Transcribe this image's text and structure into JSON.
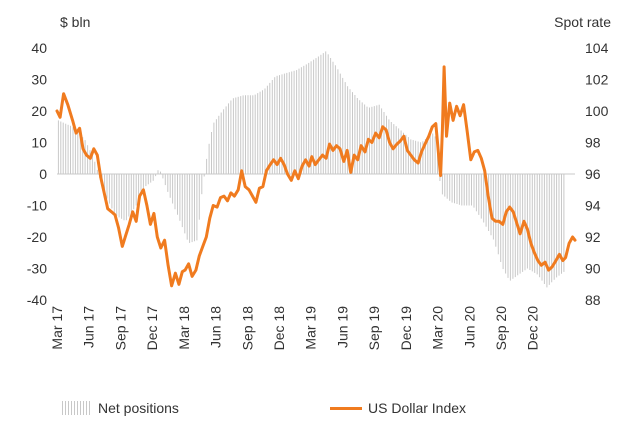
{
  "colors": {
    "bars": "#c8c8c8",
    "line": "#f07b1f",
    "zero_line": "#c8c8c8",
    "text": "#333333"
  },
  "chart_data": {
    "type": "bar+line",
    "left_axis": {
      "unit_label": "$ bln",
      "ylim": [
        -40,
        40
      ],
      "ticks": [
        "40",
        "30",
        "20",
        "10",
        "0",
        "-10",
        "-20",
        "-30",
        "-40"
      ]
    },
    "right_axis": {
      "unit_label": "Spot rate",
      "ylim": [
        88,
        104
      ],
      "ticks": [
        "104",
        "102",
        "100",
        "98",
        "96",
        "94",
        "92",
        "90",
        "88"
      ]
    },
    "x_axis": {
      "range": [
        "2017-03-01",
        "2021-04-01"
      ],
      "tick_labels": [
        "Mar 17",
        "Jun 17",
        "Sep 17",
        "Dec 17",
        "Mar 18",
        "Jun 18",
        "Sep 18",
        "Dec 18",
        "Mar 19",
        "Jun 19",
        "Sep 19",
        "Dec 19",
        "Mar 20",
        "Jun 20",
        "Sep 20",
        "Dec 20"
      ]
    },
    "legend": {
      "position": "bottom",
      "bars_label": "Net positions",
      "line_label": "US Dollar Index"
    },
    "grid": false,
    "series": [
      {
        "name": "Net positions",
        "axis": "left",
        "kind": "bar",
        "points": [
          [
            "2017-03-05",
            17
          ],
          [
            "2017-04-15",
            15
          ],
          [
            "2017-05-20",
            11
          ],
          [
            "2017-06-15",
            5
          ],
          [
            "2017-07-15",
            -6
          ],
          [
            "2017-08-15",
            -13
          ],
          [
            "2017-09-15",
            -15
          ],
          [
            "2017-10-15",
            -10
          ],
          [
            "2017-11-10",
            -4
          ],
          [
            "2017-12-05",
            -2
          ],
          [
            "2017-12-20",
            2
          ],
          [
            "2018-01-15",
            -6
          ],
          [
            "2018-02-15",
            -14
          ],
          [
            "2018-03-15",
            -22
          ],
          [
            "2018-04-10",
            -21
          ],
          [
            "2018-04-20",
            -8
          ],
          [
            "2018-05-10",
            8
          ],
          [
            "2018-05-25",
            16
          ],
          [
            "2018-06-20",
            20
          ],
          [
            "2018-07-20",
            24
          ],
          [
            "2018-08-20",
            25
          ],
          [
            "2018-09-20",
            25
          ],
          [
            "2018-10-20",
            27
          ],
          [
            "2018-11-20",
            31
          ],
          [
            "2018-12-20",
            32
          ],
          [
            "2019-01-20",
            33
          ],
          [
            "2019-02-20",
            35
          ],
          [
            "2019-03-20",
            37
          ],
          [
            "2019-04-15",
            39
          ],
          [
            "2019-05-15",
            34
          ],
          [
            "2019-06-15",
            28
          ],
          [
            "2019-07-15",
            24
          ],
          [
            "2019-08-15",
            21
          ],
          [
            "2019-09-15",
            22
          ],
          [
            "2019-10-15",
            17
          ],
          [
            "2019-11-15",
            14
          ],
          [
            "2019-12-15",
            11
          ],
          [
            "2020-01-15",
            10
          ],
          [
            "2020-02-15",
            13
          ],
          [
            "2020-03-01",
            11
          ],
          [
            "2020-03-10",
            -6
          ],
          [
            "2020-04-10",
            -9
          ],
          [
            "2020-05-10",
            -10
          ],
          [
            "2020-06-10",
            -10
          ],
          [
            "2020-07-10",
            -15
          ],
          [
            "2020-08-10",
            -21
          ],
          [
            "2020-09-05",
            -30
          ],
          [
            "2020-09-25",
            -34
          ],
          [
            "2020-10-20",
            -32
          ],
          [
            "2020-11-15",
            -30
          ],
          [
            "2020-12-15",
            -32
          ],
          [
            "2021-01-10",
            -36
          ],
          [
            "2021-02-05",
            -33
          ],
          [
            "2021-03-01",
            -31
          ]
        ]
      },
      {
        "name": "US Dollar Index",
        "axis": "right",
        "kind": "line",
        "points": [
          [
            "2017-03-01",
            100.0
          ],
          [
            "2017-03-10",
            99.6
          ],
          [
            "2017-03-20",
            101.1
          ],
          [
            "2017-04-01",
            100.4
          ],
          [
            "2017-04-15",
            99.4
          ],
          [
            "2017-04-25",
            98.6
          ],
          [
            "2017-05-05",
            98.9
          ],
          [
            "2017-05-15",
            97.6
          ],
          [
            "2017-05-25",
            97.2
          ],
          [
            "2017-06-05",
            97.0
          ],
          [
            "2017-06-15",
            97.6
          ],
          [
            "2017-06-25",
            97.2
          ],
          [
            "2017-07-05",
            95.8
          ],
          [
            "2017-07-15",
            94.8
          ],
          [
            "2017-07-25",
            93.8
          ],
          [
            "2017-08-05",
            93.6
          ],
          [
            "2017-08-15",
            93.4
          ],
          [
            "2017-08-25",
            92.6
          ],
          [
            "2017-09-05",
            91.4
          ],
          [
            "2017-09-15",
            92.1
          ],
          [
            "2017-09-25",
            92.8
          ],
          [
            "2017-10-05",
            93.6
          ],
          [
            "2017-10-15",
            93.0
          ],
          [
            "2017-10-25",
            94.6
          ],
          [
            "2017-11-05",
            95.0
          ],
          [
            "2017-11-15",
            94.0
          ],
          [
            "2017-11-25",
            92.8
          ],
          [
            "2017-12-05",
            93.5
          ],
          [
            "2017-12-15",
            92.0
          ],
          [
            "2017-12-25",
            91.3
          ],
          [
            "2018-01-05",
            91.8
          ],
          [
            "2018-01-15",
            90.2
          ],
          [
            "2018-01-25",
            88.9
          ],
          [
            "2018-02-05",
            89.7
          ],
          [
            "2018-02-15",
            89.0
          ],
          [
            "2018-02-25",
            89.8
          ],
          [
            "2018-03-05",
            89.9
          ],
          [
            "2018-03-15",
            90.3
          ],
          [
            "2018-03-25",
            89.5
          ],
          [
            "2018-04-05",
            89.9
          ],
          [
            "2018-04-15",
            90.8
          ],
          [
            "2018-04-25",
            91.4
          ],
          [
            "2018-05-05",
            92.0
          ],
          [
            "2018-05-15",
            93.2
          ],
          [
            "2018-05-25",
            94.0
          ],
          [
            "2018-06-05",
            93.9
          ],
          [
            "2018-06-15",
            94.5
          ],
          [
            "2018-06-25",
            94.6
          ],
          [
            "2018-07-05",
            94.3
          ],
          [
            "2018-07-15",
            94.8
          ],
          [
            "2018-07-25",
            94.6
          ],
          [
            "2018-08-05",
            95.0
          ],
          [
            "2018-08-15",
            96.2
          ],
          [
            "2018-08-25",
            95.2
          ],
          [
            "2018-09-05",
            95.0
          ],
          [
            "2018-09-15",
            94.6
          ],
          [
            "2018-09-25",
            94.2
          ],
          [
            "2018-10-05",
            95.1
          ],
          [
            "2018-10-15",
            95.2
          ],
          [
            "2018-10-25",
            96.2
          ],
          [
            "2018-11-05",
            96.6
          ],
          [
            "2018-11-15",
            96.9
          ],
          [
            "2018-11-25",
            96.6
          ],
          [
            "2018-12-05",
            97.0
          ],
          [
            "2018-12-15",
            96.6
          ],
          [
            "2018-12-25",
            96.0
          ],
          [
            "2019-01-05",
            95.6
          ],
          [
            "2019-01-15",
            96.2
          ],
          [
            "2019-01-25",
            95.7
          ],
          [
            "2019-02-05",
            96.5
          ],
          [
            "2019-02-15",
            96.9
          ],
          [
            "2019-02-25",
            96.5
          ],
          [
            "2019-03-05",
            97.1
          ],
          [
            "2019-03-15",
            96.6
          ],
          [
            "2019-03-25",
            96.9
          ],
          [
            "2019-04-05",
            97.2
          ],
          [
            "2019-04-15",
            97.0
          ],
          [
            "2019-04-25",
            97.9
          ],
          [
            "2019-05-05",
            97.5
          ],
          [
            "2019-05-15",
            97.8
          ],
          [
            "2019-05-25",
            97.6
          ],
          [
            "2019-06-05",
            96.8
          ],
          [
            "2019-06-15",
            97.5
          ],
          [
            "2019-06-25",
            96.1
          ],
          [
            "2019-07-05",
            97.2
          ],
          [
            "2019-07-15",
            96.9
          ],
          [
            "2019-07-25",
            97.8
          ],
          [
            "2019-08-05",
            97.4
          ],
          [
            "2019-08-15",
            98.2
          ],
          [
            "2019-08-25",
            98.0
          ],
          [
            "2019-09-05",
            98.6
          ],
          [
            "2019-09-15",
            98.3
          ],
          [
            "2019-09-25",
            99.0
          ],
          [
            "2019-10-05",
            98.8
          ],
          [
            "2019-10-15",
            98.0
          ],
          [
            "2019-10-25",
            97.6
          ],
          [
            "2019-11-05",
            97.9
          ],
          [
            "2019-11-15",
            98.1
          ],
          [
            "2019-11-25",
            98.4
          ],
          [
            "2019-12-05",
            97.5
          ],
          [
            "2019-12-15",
            97.2
          ],
          [
            "2019-12-25",
            96.9
          ],
          [
            "2020-01-05",
            96.7
          ],
          [
            "2020-01-15",
            97.4
          ],
          [
            "2020-01-25",
            97.9
          ],
          [
            "2020-02-05",
            98.4
          ],
          [
            "2020-02-15",
            99.0
          ],
          [
            "2020-02-25",
            99.2
          ],
          [
            "2020-03-05",
            97.0
          ],
          [
            "2020-03-10",
            95.9
          ],
          [
            "2020-03-15",
            98.8
          ],
          [
            "2020-03-20",
            102.8
          ],
          [
            "2020-03-27",
            98.4
          ],
          [
            "2020-04-05",
            100.5
          ],
          [
            "2020-04-15",
            99.4
          ],
          [
            "2020-04-25",
            100.3
          ],
          [
            "2020-05-05",
            99.7
          ],
          [
            "2020-05-15",
            100.4
          ],
          [
            "2020-05-25",
            98.8
          ],
          [
            "2020-06-05",
            96.9
          ],
          [
            "2020-06-15",
            97.4
          ],
          [
            "2020-06-25",
            97.5
          ],
          [
            "2020-07-05",
            97.0
          ],
          [
            "2020-07-15",
            96.2
          ],
          [
            "2020-07-25",
            94.6
          ],
          [
            "2020-08-05",
            93.2
          ],
          [
            "2020-08-15",
            93.0
          ],
          [
            "2020-08-25",
            93.0
          ],
          [
            "2020-09-05",
            92.8
          ],
          [
            "2020-09-15",
            93.6
          ],
          [
            "2020-09-25",
            93.9
          ],
          [
            "2020-10-05",
            93.6
          ],
          [
            "2020-10-15",
            92.9
          ],
          [
            "2020-10-25",
            92.2
          ],
          [
            "2020-11-05",
            93.0
          ],
          [
            "2020-11-15",
            92.5
          ],
          [
            "2020-11-25",
            91.6
          ],
          [
            "2020-12-05",
            91.0
          ],
          [
            "2020-12-15",
            90.5
          ],
          [
            "2020-12-25",
            90.2
          ],
          [
            "2021-01-05",
            90.4
          ],
          [
            "2021-01-15",
            89.9
          ],
          [
            "2021-01-25",
            90.1
          ],
          [
            "2021-02-05",
            90.5
          ],
          [
            "2021-02-15",
            90.9
          ],
          [
            "2021-02-25",
            90.5
          ],
          [
            "2021-03-05",
            90.7
          ],
          [
            "2021-03-15",
            91.6
          ],
          [
            "2021-03-25",
            92.0
          ],
          [
            "2021-04-01",
            91.8
          ]
        ]
      }
    ]
  }
}
